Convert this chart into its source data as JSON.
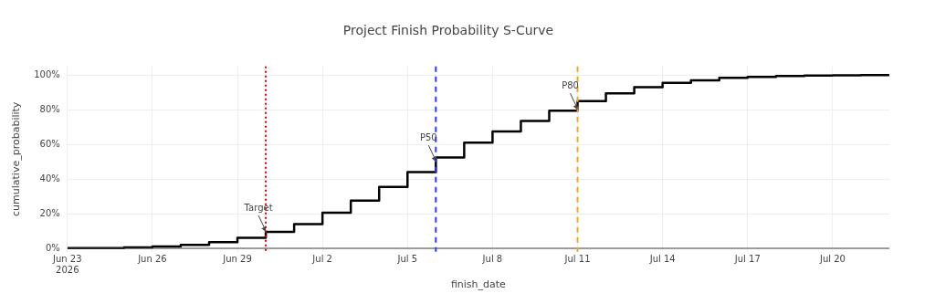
{
  "chart_data": {
    "type": "step",
    "title": "Project Finish Probability S-Curve",
    "xlabel": "finish_date",
    "ylabel": "cumulative_probability",
    "x": [
      "2026-06-23",
      "2026-06-24",
      "2026-06-25",
      "2026-06-26",
      "2026-06-27",
      "2026-06-28",
      "2026-06-29",
      "2026-06-30",
      "2026-07-01",
      "2026-07-02",
      "2026-07-03",
      "2026-07-04",
      "2026-07-05",
      "2026-07-06",
      "2026-07-07",
      "2026-07-08",
      "2026-07-09",
      "2026-07-10",
      "2026-07-11",
      "2026-07-12",
      "2026-07-13",
      "2026-07-14",
      "2026-07-15",
      "2026-07-16",
      "2026-07-17",
      "2026-07-18",
      "2026-07-19",
      "2026-07-20",
      "2026-07-21",
      "2026-07-22"
    ],
    "series": [
      {
        "color": "#000000",
        "values": [
          0.1,
          0.2,
          0.5,
          1,
          2,
          3.5,
          6,
          9.5,
          14,
          20.5,
          27.5,
          35.5,
          44,
          52.5,
          61,
          67.5,
          73.5,
          79.5,
          85,
          89.5,
          93,
          95.5,
          97,
          98.5,
          99,
          99.5,
          99.7,
          99.9,
          100,
          100
        ]
      }
    ],
    "xlim": [
      "2026-06-23",
      "2026-07-22"
    ],
    "xticks": [
      {
        "value": "2026-06-23",
        "label": "Jun 23\n2026"
      },
      {
        "value": "2026-06-26",
        "label": "Jun 26"
      },
      {
        "value": "2026-06-29",
        "label": "Jun 29"
      },
      {
        "value": "2026-07-02",
        "label": "Jul 2"
      },
      {
        "value": "2026-07-05",
        "label": "Jul 5"
      },
      {
        "value": "2026-07-08",
        "label": "Jul 8"
      },
      {
        "value": "2026-07-11",
        "label": "Jul 11"
      },
      {
        "value": "2026-07-14",
        "label": "Jul 14"
      },
      {
        "value": "2026-07-17",
        "label": "Jul 17"
      },
      {
        "value": "2026-07-20",
        "label": "Jul 20"
      }
    ],
    "ylim": [
      -2,
      105
    ],
    "yticks": [
      {
        "value": 0,
        "label": "0%"
      },
      {
        "value": 20,
        "label": "20%"
      },
      {
        "value": 40,
        "label": "40%"
      },
      {
        "value": 60,
        "label": "60%"
      },
      {
        "value": 80,
        "label": "80%"
      },
      {
        "value": 100,
        "label": "100%"
      }
    ],
    "ref_lines": [
      {
        "axis": "x",
        "value": "2026-06-30",
        "color": "#cc0000",
        "line_style": "dotted"
      },
      {
        "axis": "x",
        "value": "2026-07-06",
        "color": "#3333ff",
        "line_style": "dashed"
      },
      {
        "axis": "x",
        "value": "2026-07-11",
        "color": "#f5a623",
        "line_style": "dashed"
      }
    ],
    "annotations": [
      {
        "text": "Target",
        "x": "2026-06-30",
        "y": 9.5
      },
      {
        "text": "P50",
        "x": "2026-07-06",
        "y": 50
      },
      {
        "text": "P80",
        "x": "2026-07-11",
        "y": 80
      }
    ],
    "grid": true,
    "legend": false,
    "line_style": "solid",
    "marker": "none"
  }
}
